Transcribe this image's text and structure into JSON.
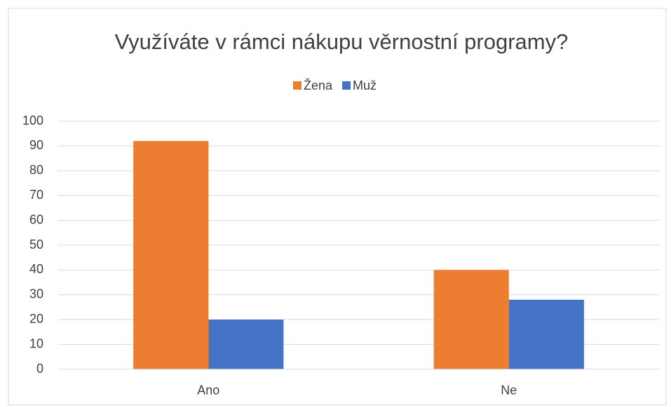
{
  "chart_data": {
    "type": "bar",
    "title": "Využíváte v rámci nákupu věrnostní programy?",
    "categories": [
      "Ano",
      "Ne"
    ],
    "series": [
      {
        "name": "Žena",
        "color": "#ed7d31",
        "values": [
          92,
          40
        ]
      },
      {
        "name": "Muž",
        "color": "#4472c4",
        "values": [
          20,
          28
        ]
      }
    ],
    "ylim": [
      0,
      100
    ],
    "yticks": [
      0,
      10,
      20,
      30,
      40,
      50,
      60,
      70,
      80,
      90,
      100
    ],
    "grid": true,
    "legend": "top"
  }
}
